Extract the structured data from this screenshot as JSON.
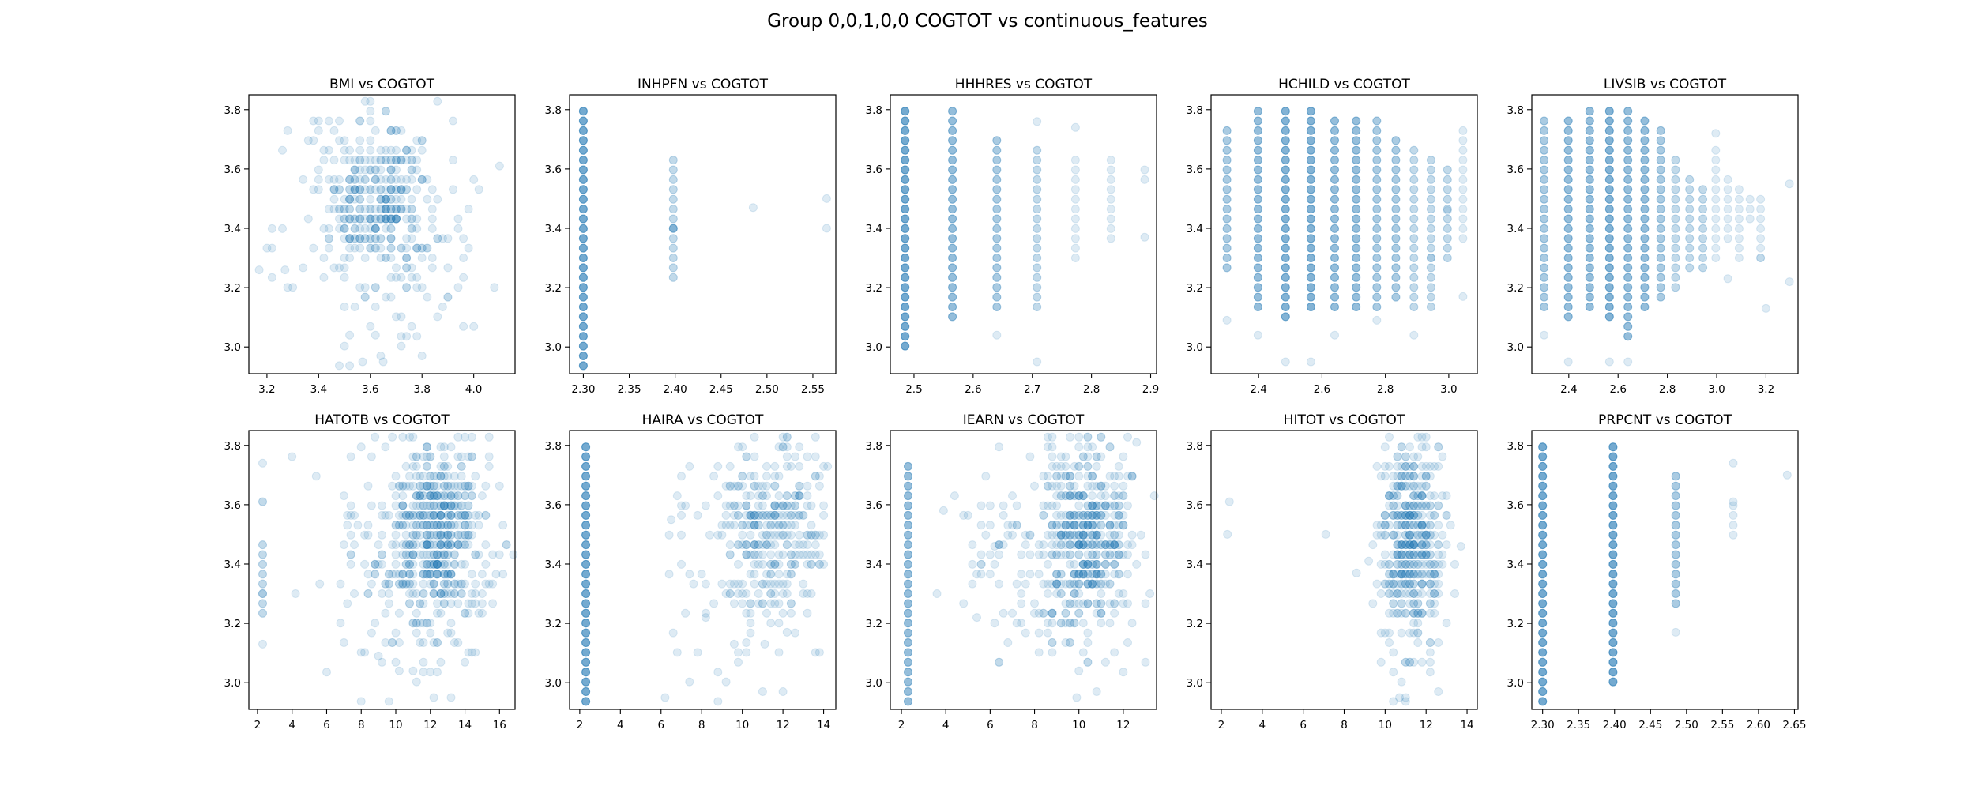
{
  "figure": {
    "title": "Group 0,0,1,0,0 COGTOT vs continuous_features",
    "marker_color": "#1f77b4",
    "marker_alpha": 0.15
  },
  "chart_data": [
    {
      "type": "scatter",
      "title": "BMI vs COGTOT",
      "xlim": [
        3.13,
        4.16
      ],
      "ylim": [
        2.91,
        3.85
      ],
      "xticks": [
        3.2,
        3.4,
        3.6,
        3.8,
        4.0
      ],
      "xtick_labels": [
        "3.2",
        "3.4",
        "3.6",
        "3.8",
        "4.0"
      ],
      "yticks": [
        3.0,
        3.2,
        3.4,
        3.6,
        3.8
      ],
      "ytick_labels": [
        "3.0",
        "3.2",
        "3.4",
        "3.6",
        "3.8"
      ],
      "clusters": [
        {
          "x": [
            3.45,
            3.8
          ],
          "y": [
            3.3,
            3.72
          ],
          "n": 260,
          "dx": 0.02,
          "dy": 0.033
        },
        {
          "x": [
            3.3,
            3.95
          ],
          "y": [
            3.1,
            3.8
          ],
          "n": 140,
          "dx": 0.02,
          "dy": 0.033
        },
        {
          "x": [
            3.15,
            4.12
          ],
          "y": [
            2.95,
            3.8
          ],
          "n": 40,
          "dx": 0.02,
          "dy": 0.033
        }
      ],
      "points": [
        [
          3.17,
          3.26
        ],
        [
          3.27,
          3.26
        ],
        [
          3.57,
          2.95
        ],
        [
          3.65,
          2.95
        ],
        [
          4.1,
          3.61
        ],
        [
          3.52,
          3.04
        ],
        [
          3.62,
          3.04
        ]
      ]
    },
    {
      "type": "scatter",
      "title": "INHPFN vs COGTOT",
      "xlim": [
        2.285,
        2.575
      ],
      "ylim": [
        2.91,
        3.85
      ],
      "xticks": [
        2.3,
        2.35,
        2.4,
        2.45,
        2.5,
        2.55
      ],
      "xtick_labels": [
        "2.30",
        "2.35",
        "2.40",
        "2.45",
        "2.50",
        "2.55"
      ],
      "yticks": [
        3.0,
        3.2,
        3.4,
        3.6,
        3.8
      ],
      "ytick_labels": [
        "3.0",
        "3.2",
        "3.4",
        "3.6",
        "3.8"
      ],
      "columns": [
        {
          "x": 2.3,
          "y": [
            2.95,
            3.81
          ],
          "reps": 6,
          "dy": 0.033
        },
        {
          "x": 2.398,
          "y": [
            3.22,
            3.64
          ],
          "reps": 2,
          "dy": 0.033
        }
      ],
      "points": [
        [
          2.398,
          3.4
        ],
        [
          2.398,
          3.4
        ],
        [
          2.398,
          3.4
        ],
        [
          2.485,
          3.47
        ],
        [
          2.565,
          3.4
        ],
        [
          2.565,
          3.5
        ]
      ]
    },
    {
      "type": "scatter",
      "title": "HHHRES vs COGTOT",
      "xlim": [
        2.46,
        2.91
      ],
      "ylim": [
        2.91,
        3.85
      ],
      "xticks": [
        2.5,
        2.6,
        2.7,
        2.8,
        2.9
      ],
      "xtick_labels": [
        "2.5",
        "2.6",
        "2.7",
        "2.8",
        "2.9"
      ],
      "yticks": [
        3.0,
        3.2,
        3.4,
        3.6,
        3.8
      ],
      "ytick_labels": [
        "3.0",
        "3.2",
        "3.4",
        "3.6",
        "3.8"
      ],
      "columns": [
        {
          "x": 2.485,
          "y": [
            2.99,
            3.81
          ],
          "reps": 6,
          "dy": 0.033
        },
        {
          "x": 2.565,
          "y": [
            3.09,
            3.81
          ],
          "reps": 4,
          "dy": 0.033
        },
        {
          "x": 2.64,
          "y": [
            3.13,
            3.72
          ],
          "reps": 3,
          "dy": 0.033
        },
        {
          "x": 2.708,
          "y": [
            3.13,
            3.68
          ],
          "reps": 2,
          "dy": 0.033
        },
        {
          "x": 2.773,
          "y": [
            3.3,
            3.64
          ],
          "reps": 1,
          "dy": 0.033
        },
        {
          "x": 2.833,
          "y": [
            3.35,
            3.64
          ],
          "reps": 1,
          "dy": 0.033
        },
        {
          "x": 2.89,
          "y": [
            3.55,
            3.61
          ],
          "reps": 1,
          "dy": 0.033
        }
      ],
      "points": [
        [
          2.64,
          3.04
        ],
        [
          2.708,
          2.95
        ],
        [
          2.773,
          3.74
        ],
        [
          2.89,
          3.37
        ],
        [
          2.708,
          3.76
        ]
      ]
    },
    {
      "type": "scatter",
      "title": "HCHILD vs COGTOT",
      "xlim": [
        2.25,
        3.09
      ],
      "ylim": [
        2.91,
        3.85
      ],
      "xticks": [
        2.4,
        2.6,
        2.8,
        3.0
      ],
      "xtick_labels": [
        "2.4",
        "2.6",
        "2.8",
        "3.0"
      ],
      "yticks": [
        3.0,
        3.2,
        3.4,
        3.6,
        3.8
      ],
      "ytick_labels": [
        "3.0",
        "3.2",
        "3.4",
        "3.6",
        "3.8"
      ],
      "columns": [
        {
          "x": 2.3,
          "y": [
            3.26,
            3.74
          ],
          "reps": 3,
          "dy": 0.033
        },
        {
          "x": 2.398,
          "y": [
            3.13,
            3.81
          ],
          "reps": 4,
          "dy": 0.033
        },
        {
          "x": 2.485,
          "y": [
            3.09,
            3.81
          ],
          "reps": 5,
          "dy": 0.033
        },
        {
          "x": 2.565,
          "y": [
            3.13,
            3.81
          ],
          "reps": 5,
          "dy": 0.033
        },
        {
          "x": 2.64,
          "y": [
            3.13,
            3.78
          ],
          "reps": 4,
          "dy": 0.033
        },
        {
          "x": 2.708,
          "y": [
            3.13,
            3.76
          ],
          "reps": 4,
          "dy": 0.033
        },
        {
          "x": 2.773,
          "y": [
            3.13,
            3.76
          ],
          "reps": 3,
          "dy": 0.033
        },
        {
          "x": 2.833,
          "y": [
            3.17,
            3.72
          ],
          "reps": 3,
          "dy": 0.033
        },
        {
          "x": 2.89,
          "y": [
            3.13,
            3.68
          ],
          "reps": 2,
          "dy": 0.033
        },
        {
          "x": 2.944,
          "y": [
            3.13,
            3.64
          ],
          "reps": 2,
          "dy": 0.033
        },
        {
          "x": 2.996,
          "y": [
            3.3,
            3.61
          ],
          "reps": 2,
          "dy": 0.033
        },
        {
          "x": 3.045,
          "y": [
            3.35,
            3.72
          ],
          "reps": 1,
          "dy": 0.033
        }
      ],
      "points": [
        [
          2.3,
          3.09
        ],
        [
          2.485,
          2.95
        ],
        [
          2.565,
          2.95
        ],
        [
          2.64,
          3.04
        ],
        [
          2.773,
          3.09
        ],
        [
          2.398,
          3.04
        ],
        [
          2.89,
          3.04
        ],
        [
          3.045,
          3.17
        ],
        [
          2.944,
          3.3
        ],
        [
          2.996,
          3.46
        ]
      ]
    },
    {
      "type": "scatter",
      "title": "LIVSIB vs COGTOT",
      "xlim": [
        2.25,
        3.33
      ],
      "ylim": [
        2.91,
        3.85
      ],
      "xticks": [
        2.4,
        2.6,
        2.8,
        3.0,
        3.2
      ],
      "xtick_labels": [
        "2.4",
        "2.6",
        "2.8",
        "3.0",
        "3.2"
      ],
      "yticks": [
        3.0,
        3.2,
        3.4,
        3.6,
        3.8
      ],
      "ytick_labels": [
        "3.0",
        "3.2",
        "3.4",
        "3.6",
        "3.8"
      ],
      "columns": [
        {
          "x": 2.3,
          "y": [
            3.13,
            3.78
          ],
          "reps": 3,
          "dy": 0.033
        },
        {
          "x": 2.398,
          "y": [
            3.09,
            3.78
          ],
          "reps": 4,
          "dy": 0.033
        },
        {
          "x": 2.485,
          "y": [
            3.13,
            3.81
          ],
          "reps": 4,
          "dy": 0.033
        },
        {
          "x": 2.565,
          "y": [
            3.09,
            3.81
          ],
          "reps": 5,
          "dy": 0.033
        },
        {
          "x": 2.64,
          "y": [
            3.04,
            3.81
          ],
          "reps": 4,
          "dy": 0.033
        },
        {
          "x": 2.708,
          "y": [
            3.13,
            3.76
          ],
          "reps": 4,
          "dy": 0.033
        },
        {
          "x": 2.773,
          "y": [
            3.17,
            3.76
          ],
          "reps": 3,
          "dy": 0.033
        },
        {
          "x": 2.833,
          "y": [
            3.2,
            3.64
          ],
          "reps": 2,
          "dy": 0.033
        },
        {
          "x": 2.89,
          "y": [
            3.26,
            3.58
          ],
          "reps": 2,
          "dy": 0.033
        },
        {
          "x": 2.944,
          "y": [
            3.26,
            3.55
          ],
          "reps": 2,
          "dy": 0.033
        },
        {
          "x": 2.996,
          "y": [
            3.3,
            3.68
          ],
          "reps": 1,
          "dy": 0.033
        },
        {
          "x": 3.045,
          "y": [
            3.35,
            3.55
          ],
          "reps": 1,
          "dy": 0.033
        },
        {
          "x": 3.091,
          "y": [
            3.3,
            3.55
          ],
          "reps": 1,
          "dy": 0.033
        },
        {
          "x": 3.135,
          "y": [
            3.44,
            3.52
          ],
          "reps": 1,
          "dy": 0.033
        },
        {
          "x": 3.178,
          "y": [
            3.3,
            3.5
          ],
          "reps": 1,
          "dy": 0.033
        }
      ],
      "points": [
        [
          2.3,
          3.04
        ],
        [
          2.565,
          2.95
        ],
        [
          2.64,
          2.95
        ],
        [
          2.398,
          2.95
        ],
        [
          3.295,
          3.55
        ],
        [
          3.295,
          3.22
        ],
        [
          3.2,
          3.13
        ],
        [
          2.996,
          3.72
        ],
        [
          3.045,
          3.23
        ],
        [
          3.178,
          3.3
        ]
      ]
    },
    {
      "type": "scatter",
      "title": "HATOTB vs COGTOT",
      "xlim": [
        1.5,
        16.9
      ],
      "ylim": [
        2.91,
        3.85
      ],
      "xticks": [
        2,
        4,
        6,
        8,
        10,
        12,
        14,
        16
      ],
      "xtick_labels": [
        "2",
        "4",
        "6",
        "8",
        "10",
        "12",
        "14",
        "16"
      ],
      "yticks": [
        3.0,
        3.2,
        3.4,
        3.6,
        3.8
      ],
      "ytick_labels": [
        "3.0",
        "3.2",
        "3.4",
        "3.6",
        "3.8"
      ],
      "columns": [
        {
          "x": 2.3,
          "y": [
            3.23,
            3.48
          ],
          "reps": 2,
          "dy": 0.033
        }
      ],
      "clusters": [
        {
          "x": 10.3,
          "y": [
            3.3,
            3.72
          ],
          "x2": 14.6,
          "n": 380,
          "dx": 0.2,
          "dy": 0.033
        },
        {
          "x": 7.5,
          "y": [
            3.1,
            3.8
          ],
          "x2": 15.5,
          "n": 220,
          "dx": 0.2,
          "dy": 0.033
        },
        {
          "x": 5.0,
          "y": [
            3.05,
            3.8
          ],
          "x2": 16.2,
          "n": 70,
          "dx": 0.2,
          "dy": 0.033
        }
      ],
      "points": [
        [
          2.3,
          3.61
        ],
        [
          2.3,
          3.61
        ],
        [
          2.3,
          3.74
        ],
        [
          2.3,
          3.13
        ],
        [
          2.3,
          3.3
        ],
        [
          12.2,
          2.95
        ],
        [
          13.2,
          2.95
        ],
        [
          11.0,
          3.04
        ],
        [
          10.2,
          3.04
        ],
        [
          9.0,
          3.09
        ]
      ]
    },
    {
      "type": "scatter",
      "title": "HAIRA vs COGTOT",
      "xlim": [
        1.5,
        14.6
      ],
      "ylim": [
        2.91,
        3.85
      ],
      "xticks": [
        2,
        4,
        6,
        8,
        10,
        12,
        14
      ],
      "xtick_labels": [
        "2",
        "4",
        "6",
        "8",
        "10",
        "12",
        "14"
      ],
      "yticks": [
        3.0,
        3.2,
        3.4,
        3.6,
        3.8
      ],
      "ytick_labels": [
        "3.0",
        "3.2",
        "3.4",
        "3.6",
        "3.8"
      ],
      "columns": [
        {
          "x": 2.3,
          "y": [
            2.95,
            3.81
          ],
          "reps": 6,
          "dy": 0.033
        }
      ],
      "clusters": [
        {
          "x": 9.3,
          "y": [
            3.3,
            3.72
          ],
          "x2": 13.8,
          "n": 240,
          "dx": 0.2,
          "dy": 0.033
        },
        {
          "x": 7.2,
          "y": [
            3.1,
            3.8
          ],
          "x2": 14.0,
          "n": 140,
          "dx": 0.2,
          "dy": 0.033
        }
      ],
      "points": [
        [
          6.2,
          2.95
        ],
        [
          6.5,
          3.55
        ],
        [
          8.2,
          3.22
        ],
        [
          9.6,
          3.13
        ],
        [
          11.1,
          3.13
        ],
        [
          12.2,
          3.17
        ]
      ]
    },
    {
      "type": "scatter",
      "title": "IEARN vs COGTOT",
      "xlim": [
        1.5,
        13.5
      ],
      "ylim": [
        2.91,
        3.85
      ],
      "xticks": [
        2,
        4,
        6,
        8,
        10,
        12
      ],
      "xtick_labels": [
        "2",
        "4",
        "6",
        "8",
        "10",
        "12"
      ],
      "yticks": [
        3.0,
        3.2,
        3.4,
        3.6,
        3.8
      ],
      "ytick_labels": [
        "3.0",
        "3.2",
        "3.4",
        "3.6",
        "3.8"
      ],
      "columns": [
        {
          "x": 2.3,
          "y": [
            2.95,
            3.76
          ],
          "reps": 4,
          "dy": 0.033
        }
      ],
      "clusters": [
        {
          "x": 8.8,
          "y": [
            3.25,
            3.75
          ],
          "x2": 12.0,
          "n": 380,
          "dx": 0.2,
          "dy": 0.033
        },
        {
          "x": 6.8,
          "y": [
            3.1,
            3.8
          ],
          "x2": 12.8,
          "n": 180,
          "dx": 0.2,
          "dy": 0.033
        },
        {
          "x": 4.5,
          "y": [
            3.2,
            3.65
          ],
          "x2": 7.5,
          "n": 30,
          "dx": 0.2,
          "dy": 0.033
        }
      ],
      "points": [
        [
          3.6,
          3.3
        ],
        [
          3.9,
          3.58
        ],
        [
          5.4,
          3.22
        ],
        [
          6.2,
          3.46
        ],
        [
          9.9,
          2.95
        ],
        [
          10.0,
          3.04
        ],
        [
          12.6,
          3.81
        ]
      ]
    },
    {
      "type": "scatter",
      "title": "HITOT vs COGTOT",
      "xlim": [
        1.5,
        14.5
      ],
      "ylim": [
        2.91,
        3.85
      ],
      "xticks": [
        2,
        4,
        6,
        8,
        10,
        12,
        14
      ],
      "xtick_labels": [
        "2",
        "4",
        "6",
        "8",
        "10",
        "12",
        "14"
      ],
      "yticks": [
        3.0,
        3.2,
        3.4,
        3.6,
        3.8
      ],
      "ytick_labels": [
        "3.0",
        "3.2",
        "3.4",
        "3.6",
        "3.8"
      ],
      "clusters": [
        {
          "x": 10.2,
          "y": [
            3.25,
            3.72
          ],
          "x2": 12.4,
          "n": 320,
          "dx": 0.2,
          "dy": 0.033
        },
        {
          "x": 9.6,
          "y": [
            3.05,
            3.8
          ],
          "x2": 13.0,
          "n": 160,
          "dx": 0.2,
          "dy": 0.033
        }
      ],
      "points": [
        [
          2.3,
          3.5
        ],
        [
          2.4,
          3.61
        ],
        [
          7.1,
          3.5
        ],
        [
          8.6,
          3.37
        ],
        [
          10.7,
          2.95
        ],
        [
          11.0,
          2.95
        ],
        [
          13.7,
          3.46
        ],
        [
          9.2,
          3.41
        ]
      ]
    },
    {
      "type": "scatter",
      "title": "PRPCNT vs COGTOT",
      "xlim": [
        2.285,
        2.655
      ],
      "ylim": [
        2.91,
        3.85
      ],
      "xticks": [
        2.3,
        2.35,
        2.4,
        2.45,
        2.5,
        2.55,
        2.6,
        2.65
      ],
      "xtick_labels": [
        "2.30",
        "2.35",
        "2.40",
        "2.45",
        "2.50",
        "2.55",
        "2.60",
        "2.65"
      ],
      "yticks": [
        3.0,
        3.2,
        3.4,
        3.6,
        3.8
      ],
      "ytick_labels": [
        "3.0",
        "3.2",
        "3.4",
        "3.6",
        "3.8"
      ],
      "columns": [
        {
          "x": 2.3,
          "y": [
            2.95,
            3.81
          ],
          "reps": 6,
          "dy": 0.033
        },
        {
          "x": 2.398,
          "y": [
            3.0,
            3.81
          ],
          "reps": 6,
          "dy": 0.033
        },
        {
          "x": 2.485,
          "y": [
            3.26,
            3.7
          ],
          "reps": 3,
          "dy": 0.033
        },
        {
          "x": 2.565,
          "y": [
            3.5,
            3.6
          ],
          "reps": 1,
          "dy": 0.033
        }
      ],
      "points": [
        [
          2.485,
          3.17
        ],
        [
          2.565,
          3.74
        ],
        [
          2.565,
          3.61
        ],
        [
          2.64,
          3.7
        ]
      ]
    }
  ]
}
